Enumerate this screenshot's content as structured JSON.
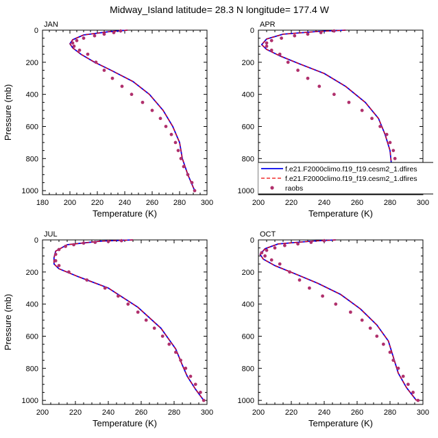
{
  "title": "Midway_Island  latitude= 28.3 N longitude= 177.4 W",
  "colors": {
    "model1": "#0000ee",
    "model2": "#ee0000",
    "obs": "#b0306c",
    "axis": "#000000"
  },
  "chart_data": [
    {
      "type": "line",
      "panel_label": "JAN",
      "xlabel": "Temperature (K)",
      "ylabel": "Pressure (mb)",
      "xlim": [
        180,
        300
      ],
      "ylim": [
        1025,
        0
      ],
      "x_ticks": [
        180,
        200,
        220,
        240,
        260,
        280,
        300
      ],
      "y_ticks": [
        0,
        200,
        400,
        600,
        800,
        1000
      ],
      "legend": null,
      "series": [
        {
          "name": "f.e21.F2000climo.f19_f19.cesm2_1.dfires",
          "style": "solid",
          "x": [
            242,
            228,
            210,
            202,
            200,
            202,
            208,
            218,
            230,
            246,
            258,
            268,
            275,
            280,
            282,
            286,
            291
          ],
          "y": [
            0,
            10,
            30,
            60,
            85,
            110,
            150,
            200,
            250,
            320,
            400,
            500,
            600,
            700,
            800,
            900,
            1000
          ]
        },
        {
          "name": "f.e21.F2000climo.f19_f19.cesm2_1.dfires",
          "style": "dashed",
          "x": [
            242,
            228,
            210,
            202,
            200,
            202,
            208,
            218,
            230,
            246,
            258,
            268,
            275,
            280,
            282,
            286,
            291
          ],
          "y": [
            0,
            10,
            30,
            60,
            85,
            110,
            150,
            200,
            250,
            320,
            400,
            500,
            600,
            700,
            800,
            900,
            1000
          ]
        },
        {
          "name": "raobs",
          "style": "markers",
          "x": [
            237,
            232,
            225,
            218,
            210,
            205,
            202,
            203,
            207,
            213,
            219,
            225,
            231,
            238,
            245,
            253,
            260,
            266,
            270,
            274,
            277,
            279,
            281,
            283,
            286,
            289,
            291
          ],
          "y": [
            5,
            15,
            25,
            35,
            50,
            65,
            80,
            100,
            125,
            150,
            200,
            250,
            300,
            350,
            400,
            450,
            500,
            550,
            600,
            650,
            700,
            750,
            800,
            850,
            900,
            950,
            1000
          ]
        }
      ]
    },
    {
      "type": "line",
      "panel_label": "APR",
      "xlabel": "Temperature (K)",
      "ylabel": "",
      "xlim": [
        200,
        300
      ],
      "ylim": [
        1025,
        0
      ],
      "x_ticks": [
        200,
        220,
        240,
        260,
        280,
        300
      ],
      "y_ticks": [
        0,
        200,
        400,
        600,
        800,
        1000
      ],
      "legend": {
        "placement": "bottom-right",
        "entries": [
          {
            "label": "f.e21.F2000climo.f19_f19.cesm2_1.dfires",
            "style": "solid"
          },
          {
            "label": "f.e21.F2000climo.f19_f19.cesm2_1.dfires",
            "style": "dashed"
          },
          {
            "label": "raobs",
            "style": "markers"
          }
        ]
      },
      "series": [
        {
          "name": "f.e21.F2000climo.f19_f19.cesm2_1.dfires",
          "style": "solid",
          "x": [
            253,
            236,
            215,
            205,
            202,
            205,
            213,
            225,
            240,
            253,
            265,
            273,
            277,
            280,
            281,
            286,
            292
          ],
          "y": [
            0,
            8,
            25,
            55,
            90,
            120,
            160,
            210,
            270,
            350,
            450,
            550,
            650,
            750,
            850,
            930,
            1000
          ]
        },
        {
          "name": "f.e21.F2000climo.f19_f19.cesm2_1.dfires",
          "style": "dashed",
          "x": [
            253,
            236,
            215,
            205,
            202,
            205,
            213,
            225,
            240,
            253,
            265,
            273,
            277,
            280,
            281,
            286,
            292
          ],
          "y": [
            0,
            8,
            25,
            55,
            90,
            120,
            160,
            210,
            270,
            350,
            450,
            550,
            650,
            750,
            850,
            930,
            1000
          ]
        },
        {
          "name": "raobs",
          "style": "markers",
          "x": [
            246,
            238,
            230,
            222,
            214,
            208,
            205,
            205,
            208,
            213,
            218,
            224,
            230,
            237,
            246,
            255,
            263,
            269,
            274,
            278,
            280,
            282,
            283,
            284,
            286,
            289,
            292
          ],
          "y": [
            5,
            15,
            25,
            35,
            50,
            65,
            80,
            100,
            125,
            150,
            200,
            250,
            300,
            350,
            400,
            450,
            500,
            550,
            600,
            650,
            700,
            750,
            800,
            850,
            900,
            950,
            1000
          ]
        }
      ]
    },
    {
      "type": "line",
      "panel_label": "JUL",
      "xlabel": "Temperature (K)",
      "ylabel": "Pressure (mb)",
      "xlim": [
        200,
        300
      ],
      "ylim": [
        1025,
        0
      ],
      "x_ticks": [
        200,
        220,
        240,
        260,
        280,
        300
      ],
      "y_ticks": [
        0,
        200,
        400,
        600,
        800,
        1000
      ],
      "legend": null,
      "series": [
        {
          "name": "f.e21.F2000climo.f19_f19.cesm2_1.dfires",
          "style": "solid",
          "x": [
            255,
            235,
            215,
            208,
            207,
            207,
            210,
            222,
            240,
            258,
            272,
            281,
            285,
            288,
            293,
            298
          ],
          "y": [
            0,
            8,
            30,
            70,
            110,
            150,
            180,
            230,
            300,
            420,
            550,
            680,
            780,
            850,
            930,
            1000
          ]
        },
        {
          "name": "f.e21.F2000climo.f19_f19.cesm2_1.dfires",
          "style": "dashed",
          "x": [
            255,
            235,
            215,
            208,
            207,
            207,
            210,
            222,
            240,
            258,
            272,
            281,
            285,
            288,
            293,
            298
          ],
          "y": [
            0,
            8,
            30,
            70,
            110,
            150,
            180,
            230,
            300,
            420,
            550,
            680,
            780,
            850,
            930,
            1000
          ]
        },
        {
          "name": "raobs",
          "style": "markers",
          "x": [
            248,
            240,
            232,
            225,
            219,
            214,
            210,
            208,
            208,
            210,
            216,
            227,
            238,
            246,
            252,
            258,
            263,
            268,
            273,
            277,
            281,
            284,
            287,
            290,
            293,
            296,
            298
          ],
          "y": [
            5,
            10,
            15,
            20,
            30,
            40,
            60,
            90,
            130,
            160,
            200,
            250,
            300,
            350,
            400,
            450,
            500,
            550,
            600,
            650,
            700,
            750,
            800,
            850,
            900,
            950,
            1000
          ]
        }
      ]
    },
    {
      "type": "line",
      "panel_label": "OCT",
      "xlabel": "Temperature (K)",
      "ylabel": "",
      "xlim": [
        200,
        300
      ],
      "ylim": [
        1025,
        0
      ],
      "x_ticks": [
        200,
        220,
        240,
        260,
        280,
        300
      ],
      "y_ticks": [
        0,
        200,
        400,
        600,
        800,
        1000
      ],
      "legend": null,
      "series": [
        {
          "name": "f.e21.F2000climo.f19_f19.cesm2_1.dfires",
          "style": "solid",
          "x": [
            247,
            232,
            212,
            204,
            201,
            203,
            210,
            222,
            236,
            250,
            262,
            272,
            279,
            282,
            285,
            290,
            296
          ],
          "y": [
            0,
            8,
            25,
            55,
            90,
            120,
            160,
            210,
            270,
            340,
            430,
            530,
            630,
            730,
            830,
            920,
            1000
          ]
        },
        {
          "name": "f.e21.F2000climo.f19_f19.cesm2_1.dfires",
          "style": "dashed",
          "x": [
            247,
            232,
            212,
            204,
            201,
            203,
            210,
            222,
            236,
            250,
            262,
            272,
            279,
            282,
            285,
            290,
            296
          ],
          "y": [
            0,
            8,
            25,
            55,
            90,
            120,
            160,
            210,
            270,
            340,
            430,
            530,
            630,
            730,
            830,
            920,
            1000
          ]
        },
        {
          "name": "raobs",
          "style": "markers",
          "x": [
            240,
            232,
            224,
            216,
            210,
            205,
            202,
            204,
            208,
            213,
            219,
            225,
            231,
            239,
            247,
            256,
            263,
            268,
            272,
            276,
            280,
            282,
            285,
            288,
            291,
            294,
            297
          ],
          "y": [
            5,
            15,
            25,
            35,
            50,
            65,
            80,
            100,
            125,
            150,
            200,
            250,
            300,
            350,
            400,
            450,
            500,
            550,
            600,
            650,
            700,
            750,
            800,
            850,
            900,
            950,
            1000
          ]
        }
      ]
    }
  ]
}
